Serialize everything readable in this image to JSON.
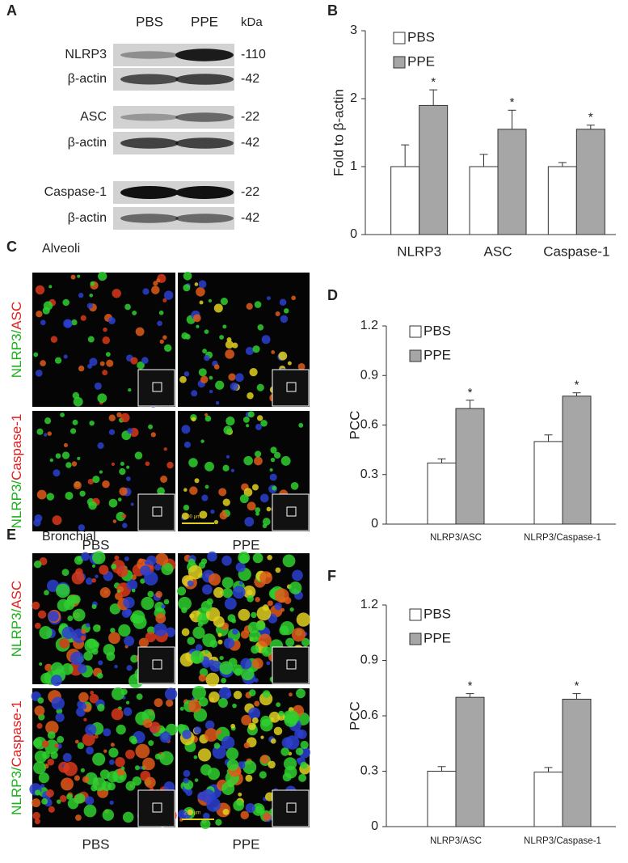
{
  "blot": {
    "label": "A",
    "columns": [
      "PBS",
      "PPE"
    ],
    "unit": "kDa",
    "rows": [
      {
        "name": "NLRP3",
        "kda": "-110"
      },
      {
        "name": "β-actin",
        "kda": "-42"
      },
      {
        "name": "ASC",
        "kda": "-22"
      },
      {
        "name": "β-actin",
        "kda": "-42"
      },
      {
        "name": "Caspase-1",
        "kda": "-22"
      },
      {
        "name": "β-actin",
        "kda": "-42"
      }
    ]
  },
  "microscopy": [
    {
      "label": "C",
      "region": "Alveoli",
      "columns": [
        "PBS",
        "PPE"
      ],
      "scale_bar": "200 μm",
      "rows": [
        {
          "marker1": "NLRP3/",
          "marker2": "ASC"
        },
        {
          "marker1": "NLRP3/",
          "marker2": "Caspase-1"
        }
      ]
    },
    {
      "label": "E",
      "region": "Bronchial",
      "columns": [
        "PBS",
        "PPE"
      ],
      "scale_bar": "200 μm",
      "rows": [
        {
          "marker1": "NLRP3/",
          "marker2": "ASC"
        },
        {
          "marker1": "NLRP3/",
          "marker2": "Caspase-1"
        }
      ]
    }
  ],
  "chart_data": [
    {
      "type": "bar",
      "panel_label": "B",
      "y_label": "Fold to β-actin",
      "categories": [
        "NLRP3",
        "ASC",
        "Caspase-1"
      ],
      "series": [
        {
          "name": "PBS",
          "color": "#ffffff",
          "values": [
            1,
            1,
            1
          ],
          "errors": [
            0.32,
            0.18,
            0.06
          ]
        },
        {
          "name": "PPE",
          "color": "#a6a6a6",
          "values": [
            1.9,
            1.55,
            1.55
          ],
          "errors": [
            0.23,
            0.28,
            0.06
          ],
          "markers": [
            "*",
            "*",
            "*"
          ]
        }
      ],
      "ylim": [
        0,
        3
      ],
      "yticks": [
        0,
        1,
        2,
        3
      ]
    },
    {
      "type": "bar",
      "panel_label": "D",
      "y_label": "PCC",
      "categories": [
        "NLRP3/ASC",
        "NLRP3/Caspase-1"
      ],
      "series": [
        {
          "name": "PBS",
          "color": "#ffffff",
          "values": [
            0.37,
            0.5
          ],
          "errors": [
            0.025,
            0.04
          ]
        },
        {
          "name": "PPE",
          "color": "#a6a6a6",
          "values": [
            0.7,
            0.775
          ],
          "errors": [
            0.05,
            0.02
          ],
          "markers": [
            "*",
            "*"
          ]
        }
      ],
      "ylim": [
        0,
        1.2
      ],
      "yticks": [
        0,
        0.3,
        0.6,
        0.9,
        1.2
      ]
    },
    {
      "type": "bar",
      "panel_label": "F",
      "y_label": "PCC",
      "categories": [
        "NLRP3/ASC",
        "NLRP3/Caspase-1"
      ],
      "series": [
        {
          "name": "PBS",
          "color": "#ffffff",
          "values": [
            0.3,
            0.295
          ],
          "errors": [
            0.025,
            0.025
          ]
        },
        {
          "name": "PPE",
          "color": "#a6a6a6",
          "values": [
            0.7,
            0.69
          ],
          "errors": [
            0.02,
            0.03
          ],
          "markers": [
            "*",
            "*"
          ]
        }
      ],
      "ylim": [
        0,
        1.2
      ],
      "yticks": [
        0,
        0.3,
        0.6,
        0.9,
        1.2
      ]
    }
  ]
}
